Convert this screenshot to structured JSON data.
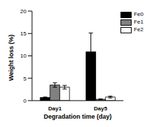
{
  "chart_data": {
    "type": "bar",
    "x_label": "Degradation time (day)",
    "y_label": "Weight loss (%)",
    "categories": [
      "Day1",
      "Day5"
    ],
    "series": [
      {
        "name": "Fe0",
        "color": "#000000",
        "values": [
          0.7,
          10.9
        ],
        "errors": [
          0.1,
          4.2
        ]
      },
      {
        "name": "Fe1",
        "color": "#808080",
        "values": [
          3.5,
          0.3
        ],
        "errors": [
          0.5,
          0.1
        ]
      },
      {
        "name": "Fe2",
        "color": "#ffffff",
        "values": [
          3.0,
          0.8
        ],
        "errors": [
          0.4,
          0.2
        ]
      }
    ],
    "ylim": [
      0,
      20
    ],
    "yticks": [
      0,
      5,
      10,
      15,
      20
    ],
    "legend": "top-right"
  }
}
